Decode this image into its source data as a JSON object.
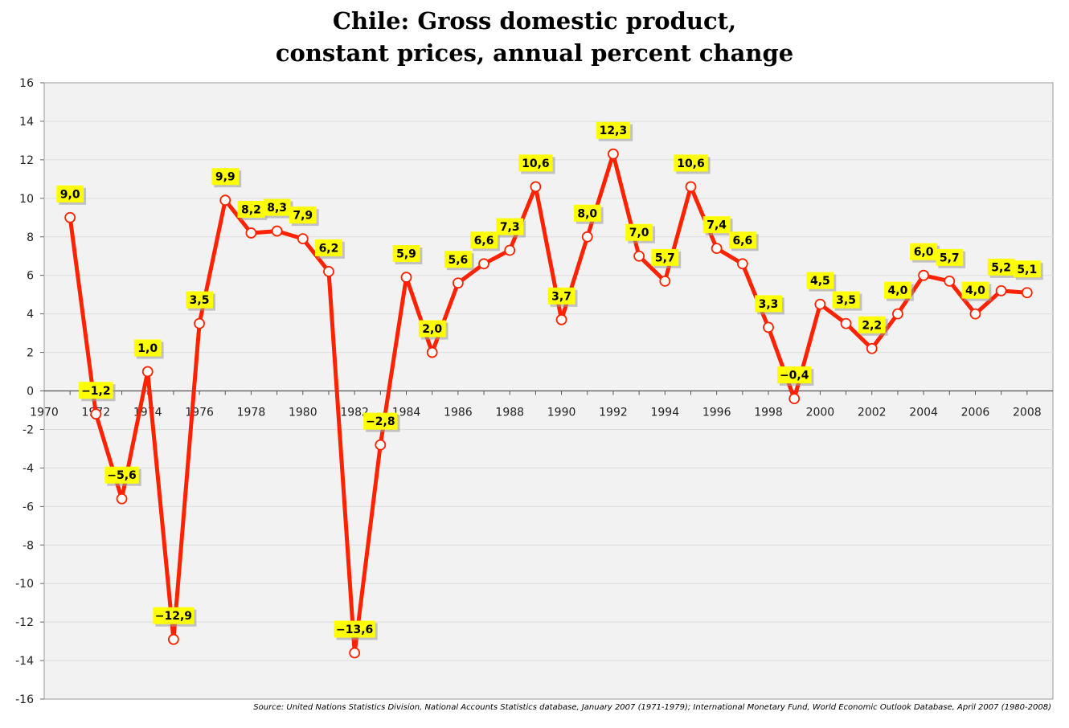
{
  "chart_data": {
    "type": "line",
    "title_line1": "Chile: Gross domestic product,",
    "title_line2": "constant prices, annual percent change",
    "source": "Source: United Nations Statistics Division, National Accounts Statistics database, January 2007 (1971-1979); International Monetary Fund, World Economic Outlook Database, April 2007 (1980-2008)",
    "xlim": [
      1970,
      2009
    ],
    "ylim": [
      -16,
      16
    ],
    "x_ticks": [
      "1970",
      "1972",
      "1974",
      "1976",
      "1978",
      "1980",
      "1982",
      "1984",
      "1986",
      "1988",
      "1990",
      "1992",
      "1994",
      "1996",
      "1998",
      "2000",
      "2002",
      "2004",
      "2006",
      "2008"
    ],
    "y_ticks": [
      "16",
      "14",
      "12",
      "10",
      "8",
      "6",
      "4",
      "2",
      "0",
      "-2",
      "-4",
      "-6",
      "-8",
      "-10",
      "-12",
      "-14",
      "-16"
    ],
    "grid": true,
    "line_color": "#ff2200",
    "label_bg_color": "#ffff00",
    "plot_bg_color": "#f2f2f2",
    "x": [
      1971,
      1972,
      1973,
      1974,
      1975,
      1976,
      1977,
      1978,
      1979,
      1980,
      1981,
      1982,
      1983,
      1984,
      1985,
      1986,
      1987,
      1988,
      1989,
      1990,
      1991,
      1992,
      1993,
      1994,
      1995,
      1996,
      1997,
      1998,
      1999,
      2000,
      2001,
      2002,
      2003,
      2004,
      2005,
      2006,
      2007,
      2008
    ],
    "values": [
      9.0,
      -1.2,
      -5.6,
      1.0,
      -12.9,
      3.5,
      9.9,
      8.2,
      8.3,
      7.9,
      6.2,
      -13.6,
      -2.8,
      5.9,
      2.0,
      5.6,
      6.6,
      7.3,
      10.6,
      3.7,
      8.0,
      12.3,
      7.0,
      5.7,
      10.6,
      7.4,
      6.6,
      3.3,
      -0.4,
      4.5,
      3.5,
      2.2,
      4.0,
      6.0,
      5.7,
      4.0,
      5.2,
      5.1
    ],
    "labels": [
      "9,0",
      "−1,2",
      "−5,6",
      "1,0",
      "−12,9",
      "3,5",
      "9,9",
      "8,2",
      "8,3",
      "7,9",
      "6,2",
      "−13,6",
      "−2,8",
      "5,9",
      "2,0",
      "5,6",
      "6,6",
      "7,3",
      "10,6",
      "3,7",
      "8,0",
      "12,3",
      "7,0",
      "5,7",
      "10,6",
      "7,4",
      "6,6",
      "3,3",
      "−0,4",
      "4,5",
      "3,5",
      "2,2",
      "4,0",
      "6,0",
      "5,7",
      "4,0",
      "5,2",
      "5,1"
    ]
  }
}
